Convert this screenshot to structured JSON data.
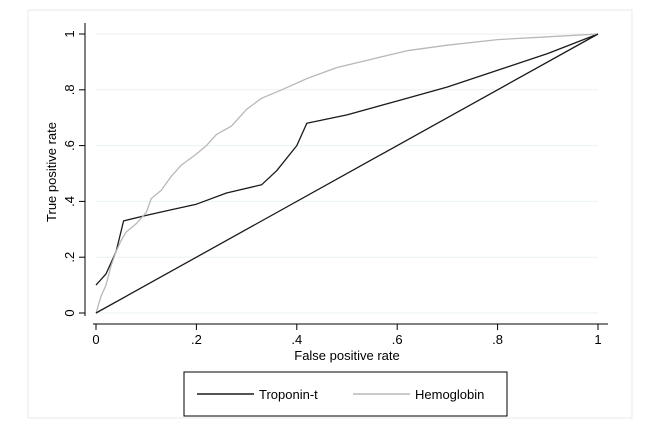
{
  "chart_data": {
    "type": "line",
    "xlabel": "False positive rate",
    "ylabel": "True positive rate",
    "xlim": [
      0,
      1
    ],
    "ylim": [
      0,
      1
    ],
    "x_ticks": [
      0,
      0.2,
      0.4,
      0.6,
      0.8,
      1
    ],
    "x_tick_labels": [
      "0",
      ".2",
      ".4",
      ".6",
      ".8",
      "1"
    ],
    "y_ticks": [
      0,
      0.2,
      0.4,
      0.6,
      0.8,
      1
    ],
    "y_tick_labels": [
      "0",
      ".2",
      ".4",
      ".6",
      ".8",
      "1"
    ],
    "grid": "horizontal",
    "legend_position": "bottom",
    "series": [
      {
        "name": "Troponin-t",
        "color": "#1a1a1a",
        "points": [
          [
            0,
            0.1
          ],
          [
            0.02,
            0.14
          ],
          [
            0.04,
            0.22
          ],
          [
            0.055,
            0.33
          ],
          [
            0.1,
            0.35
          ],
          [
            0.15,
            0.37
          ],
          [
            0.2,
            0.39
          ],
          [
            0.26,
            0.43
          ],
          [
            0.33,
            0.46
          ],
          [
            0.36,
            0.51
          ],
          [
            0.4,
            0.6
          ],
          [
            0.42,
            0.68
          ],
          [
            0.5,
            0.71
          ],
          [
            0.6,
            0.76
          ],
          [
            0.7,
            0.81
          ],
          [
            0.8,
            0.87
          ],
          [
            0.9,
            0.93
          ],
          [
            1,
            1
          ]
        ]
      },
      {
        "name": "Hemoglobin",
        "color": "#b8b8b8",
        "points": [
          [
            0,
            0
          ],
          [
            0.01,
            0.06
          ],
          [
            0.02,
            0.1
          ],
          [
            0.03,
            0.17
          ],
          [
            0.04,
            0.22
          ],
          [
            0.05,
            0.26
          ],
          [
            0.06,
            0.29
          ],
          [
            0.08,
            0.32
          ],
          [
            0.1,
            0.36
          ],
          [
            0.11,
            0.41
          ],
          [
            0.13,
            0.44
          ],
          [
            0.15,
            0.49
          ],
          [
            0.17,
            0.53
          ],
          [
            0.2,
            0.57
          ],
          [
            0.22,
            0.6
          ],
          [
            0.24,
            0.64
          ],
          [
            0.27,
            0.67
          ],
          [
            0.3,
            0.73
          ],
          [
            0.33,
            0.77
          ],
          [
            0.37,
            0.8
          ],
          [
            0.42,
            0.84
          ],
          [
            0.48,
            0.88
          ],
          [
            0.55,
            0.91
          ],
          [
            0.62,
            0.94
          ],
          [
            0.7,
            0.96
          ],
          [
            0.8,
            0.98
          ],
          [
            0.9,
            0.99
          ],
          [
            1,
            1
          ]
        ]
      },
      {
        "name": "",
        "color": "#1a1a1a",
        "points": [
          [
            0,
            0
          ],
          [
            1,
            1
          ]
        ]
      }
    ]
  }
}
